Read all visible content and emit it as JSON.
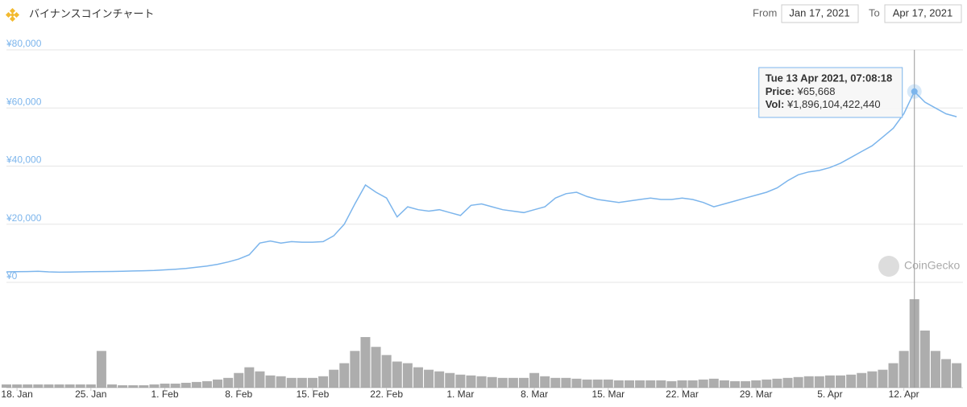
{
  "chart_data": {
    "type": "line",
    "title": "バイナンスコインチャート",
    "from_label": "From",
    "from_date": "Jan 17, 2021",
    "to_label": "To",
    "to_date": "Apr 17, 2021",
    "watermark": "CoinGecko",
    "x": [
      0,
      1,
      2,
      3,
      4,
      5,
      6,
      7,
      8,
      9,
      10,
      11,
      12,
      13,
      14,
      15,
      16,
      17,
      18,
      19,
      20,
      21,
      22,
      23,
      24,
      25,
      26,
      27,
      28,
      29,
      30,
      31,
      32,
      33,
      34,
      35,
      36,
      37,
      38,
      39,
      40,
      41,
      42,
      43,
      44,
      45,
      46,
      47,
      48,
      49,
      50,
      51,
      52,
      53,
      54,
      55,
      56,
      57,
      58,
      59,
      60,
      61,
      62,
      63,
      64,
      65,
      66,
      67,
      68,
      69,
      70,
      71,
      72,
      73,
      74,
      75,
      76,
      77,
      78,
      79,
      80,
      81,
      82,
      83,
      84,
      85,
      86,
      87,
      88,
      89,
      90
    ],
    "xlim": [
      0,
      90.6
    ],
    "xticks": [
      {
        "value": 1,
        "label": "18. Jan"
      },
      {
        "value": 8,
        "label": "25. Jan"
      },
      {
        "value": 15,
        "label": "1. Feb"
      },
      {
        "value": 22,
        "label": "8. Feb"
      },
      {
        "value": 29,
        "label": "15. Feb"
      },
      {
        "value": 36,
        "label": "22. Feb"
      },
      {
        "value": 43,
        "label": "1. Mar"
      },
      {
        "value": 50,
        "label": "8. Mar"
      },
      {
        "value": 57,
        "label": "15. Mar"
      },
      {
        "value": 64,
        "label": "22. Mar"
      },
      {
        "value": 71,
        "label": "29. Mar"
      },
      {
        "value": 78,
        "label": "5. Apr"
      },
      {
        "value": 85,
        "label": "12. Apr"
      }
    ],
    "ylim": [
      0,
      80000
    ],
    "yticks": [
      {
        "value": 0,
        "label": "¥0"
      },
      {
        "value": 20000,
        "label": "¥20,000"
      },
      {
        "value": 40000,
        "label": "¥40,000"
      },
      {
        "value": 60000,
        "label": "¥60,000"
      },
      {
        "value": 80000,
        "label": "¥80,000"
      }
    ],
    "grid": true,
    "series": [
      {
        "color": "#7cb5ec",
        "values": [
          3600,
          3650,
          3700,
          3800,
          3600,
          3500,
          3550,
          3600,
          3650,
          3700,
          3750,
          3800,
          3900,
          4000,
          4100,
          4300,
          4500,
          4800,
          5200,
          5600,
          6200,
          7000,
          8000,
          9500,
          13500,
          14200,
          13500,
          14000,
          13800,
          13800,
          14000,
          16000,
          20000,
          27000,
          33500,
          31000,
          29000,
          22500,
          26000,
          25000,
          24500,
          25000,
          24000,
          23000,
          26500,
          27000,
          26000,
          25000,
          24500,
          24000,
          25000,
          26000,
          29000,
          30500,
          31000,
          29500,
          28500,
          28000,
          27500,
          28000,
          28500,
          29000,
          28500,
          28500,
          29000,
          28500,
          27500,
          26000,
          27000,
          28000,
          29000,
          30000,
          31000,
          32500,
          35000,
          37000,
          38000,
          38500,
          39500,
          41000,
          43000,
          45000,
          47000,
          50000,
          53000,
          58000,
          65668,
          62000,
          60000,
          58000,
          57000
        ]
      }
    ],
    "volume": {
      "color": "#999999",
      "values": [
        70000000000,
        70000000000,
        70000000000,
        70000000000,
        70000000000,
        70000000000,
        70000000000,
        70000000000,
        70000000000,
        787500000000,
        70000000000,
        52500000000,
        52500000000,
        52500000000,
        70000000000,
        87500000000,
        87500000000,
        105000000000,
        122500000000,
        140000000000,
        175000000000,
        210000000000,
        315000000000,
        437500000000,
        350000000000,
        262500000000,
        245000000000,
        210000000000,
        210000000000,
        210000000000,
        245000000000,
        385000000000,
        525000000000,
        787500000000,
        1085000000000,
        875000000000,
        700000000000,
        560000000000,
        525000000000,
        437500000000,
        385000000000,
        350000000000,
        315000000000,
        280000000000,
        262500000000,
        245000000000,
        227500000000,
        210000000000,
        210000000000,
        210000000000,
        315000000000,
        245000000000,
        210000000000,
        210000000000,
        192500000000,
        175000000000,
        175000000000,
        175000000000,
        157500000000,
        157500000000,
        157500000000,
        157500000000,
        157500000000,
        140000000000,
        157500000000,
        157500000000,
        175000000000,
        192500000000,
        157500000000,
        140000000000,
        140000000000,
        157500000000,
        175000000000,
        192500000000,
        210000000000,
        227500000000,
        245000000000,
        245000000000,
        262500000000,
        262500000000,
        280000000000,
        315000000000,
        350000000000,
        385000000000,
        525000000000,
        787500000000,
        1896104422440,
        1225000000000,
        787500000000,
        612500000000,
        525000000000
      ]
    },
    "tooltip": {
      "title": "Tue 13 Apr 2021, 07:08:18",
      "price_label": "Price:",
      "price": "¥65,668",
      "vol_label": "Vol:",
      "vol": "¥1,896,104,422,440"
    }
  }
}
